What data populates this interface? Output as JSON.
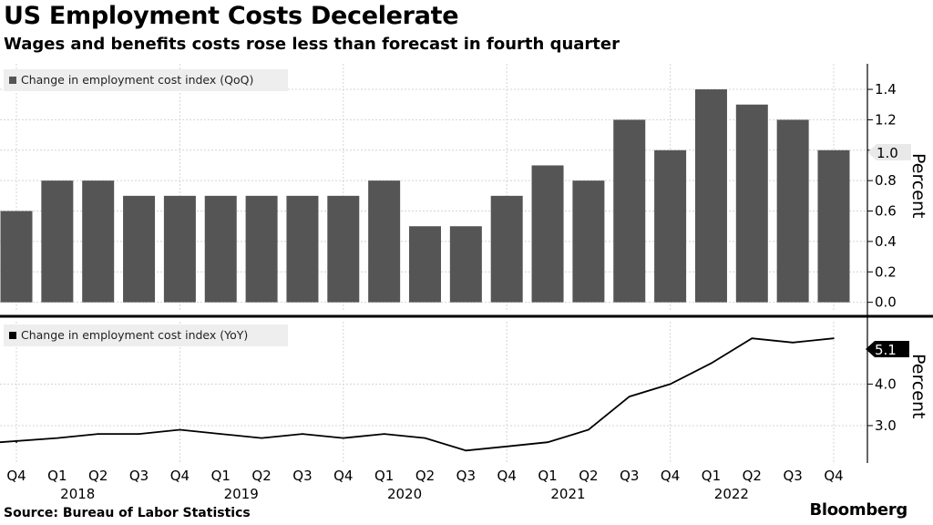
{
  "title": "US Employment Costs Decelerate",
  "subtitle": "Wages and benefits costs rose less than forecast in fourth quarter",
  "source": "Source: Bureau of Labor Statistics",
  "brand": "Bloomberg",
  "colors": {
    "bar": "#555555",
    "line": "#000000",
    "grid": "#d4d4d4"
  },
  "chart_data": [
    {
      "type": "bar",
      "legend": "Change in employment cost index (QoQ)",
      "axis_title": "Percent",
      "ylim": [
        -0.05,
        1.55
      ],
      "yticks": [
        "0.0",
        "0.2",
        "0.4",
        "0.6",
        "0.8",
        "1.0",
        "1.2",
        "1.4"
      ],
      "last_value_label": "1.0",
      "categories": [
        "Q4 2017",
        "Q1 2018",
        "Q2 2018",
        "Q3 2018",
        "Q4 2018",
        "Q1 2019",
        "Q2 2019",
        "Q3 2019",
        "Q4 2019",
        "Q1 2020",
        "Q2 2020",
        "Q3 2020",
        "Q4 2020",
        "Q1 2021",
        "Q2 2021",
        "Q3 2021",
        "Q4 2021",
        "Q1 2022",
        "Q2 2022",
        "Q3 2022",
        "Q4 2022"
      ],
      "values": [
        0.6,
        0.8,
        0.8,
        0.7,
        0.7,
        0.7,
        0.7,
        0.7,
        0.7,
        0.8,
        0.5,
        0.5,
        0.7,
        0.9,
        0.8,
        1.2,
        1.0,
        1.4,
        1.3,
        1.2,
        1.0
      ]
    },
    {
      "type": "line",
      "legend": "Change in employment cost index (YoY)",
      "axis_title": "Percent",
      "ylim": [
        2.1,
        5.5
      ],
      "yticks": [
        "3.0",
        "4.0"
      ],
      "last_value_label": "5.1",
      "categories": [
        "Q4 2017",
        "Q1 2018",
        "Q2 2018",
        "Q3 2018",
        "Q4 2018",
        "Q1 2019",
        "Q2 2019",
        "Q3 2019",
        "Q4 2019",
        "Q1 2020",
        "Q2 2020",
        "Q3 2020",
        "Q4 2020",
        "Q1 2021",
        "Q2 2021",
        "Q3 2021",
        "Q4 2021",
        "Q1 2022",
        "Q2 2022",
        "Q3 2022",
        "Q4 2022"
      ],
      "values": [
        2.6,
        2.7,
        2.8,
        2.8,
        2.9,
        2.8,
        2.7,
        2.8,
        2.7,
        2.8,
        2.7,
        2.4,
        2.5,
        2.6,
        2.9,
        3.7,
        4.0,
        4.5,
        5.1,
        5.0,
        5.1
      ]
    }
  ],
  "x_axis": {
    "quarter_labels": [
      "Q4",
      "Q1",
      "Q2",
      "Q3",
      "Q4",
      "Q1",
      "Q2",
      "Q3",
      "Q4",
      "Q1",
      "Q2",
      "Q3",
      "Q4",
      "Q1",
      "Q2",
      "Q3",
      "Q4",
      "Q1",
      "Q2",
      "Q3",
      "Q4"
    ],
    "year_labels": [
      {
        "label": "2018",
        "index": 2
      },
      {
        "label": "2019",
        "index": 6
      },
      {
        "label": "2020",
        "index": 10
      },
      {
        "label": "2021",
        "index": 14
      },
      {
        "label": "2022",
        "index": 18
      }
    ]
  }
}
